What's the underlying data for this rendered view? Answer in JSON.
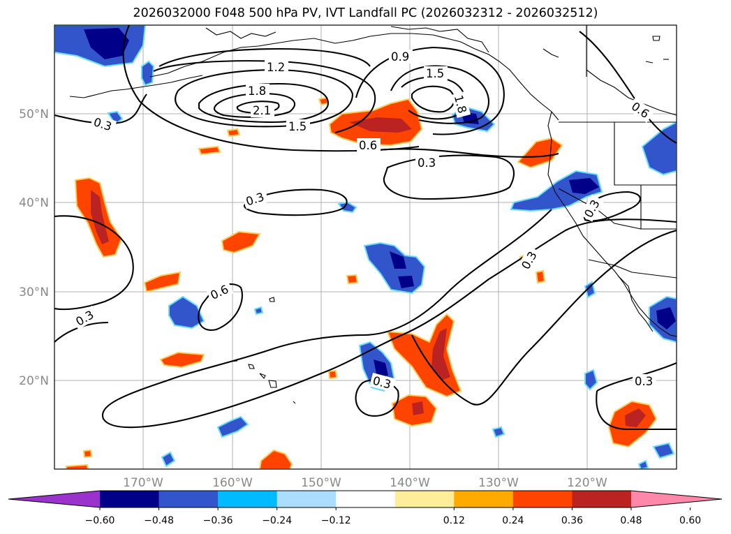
{
  "title": "2026032000 F048 500 hPa PV, IVT Landfall PC (2026032312 - 2026032512)",
  "map": {
    "lon_labels": [
      "170°W",
      "160°W",
      "150°W",
      "140°W",
      "130°W",
      "120°W"
    ],
    "lat_labels": [
      "50°N",
      "40°N",
      "30°N",
      "20°N"
    ],
    "contour_labels": [
      "1.2",
      "0.9",
      "1.5",
      "1.8",
      "2.1",
      "1.5",
      "0.6",
      "0.3",
      "0.3",
      "0.3",
      "0.6",
      "0.3",
      "0.3",
      "0.3",
      "0.3",
      "0.6",
      "0.3",
      "1.8"
    ]
  },
  "colorbar": {
    "ticks": [
      "−0.60",
      "−0.48",
      "−0.36",
      "−0.24",
      "−0.12",
      "0.12",
      "0.24",
      "0.36",
      "0.48",
      "0.60"
    ],
    "colors": [
      "#9933cc",
      "#000088",
      "#3355cc",
      "#00bbff",
      "#aaddff",
      "#ffffff",
      "#ffee99",
      "#ffaa00",
      "#ff4400",
      "#bb2222",
      "#ff88aa"
    ]
  }
}
